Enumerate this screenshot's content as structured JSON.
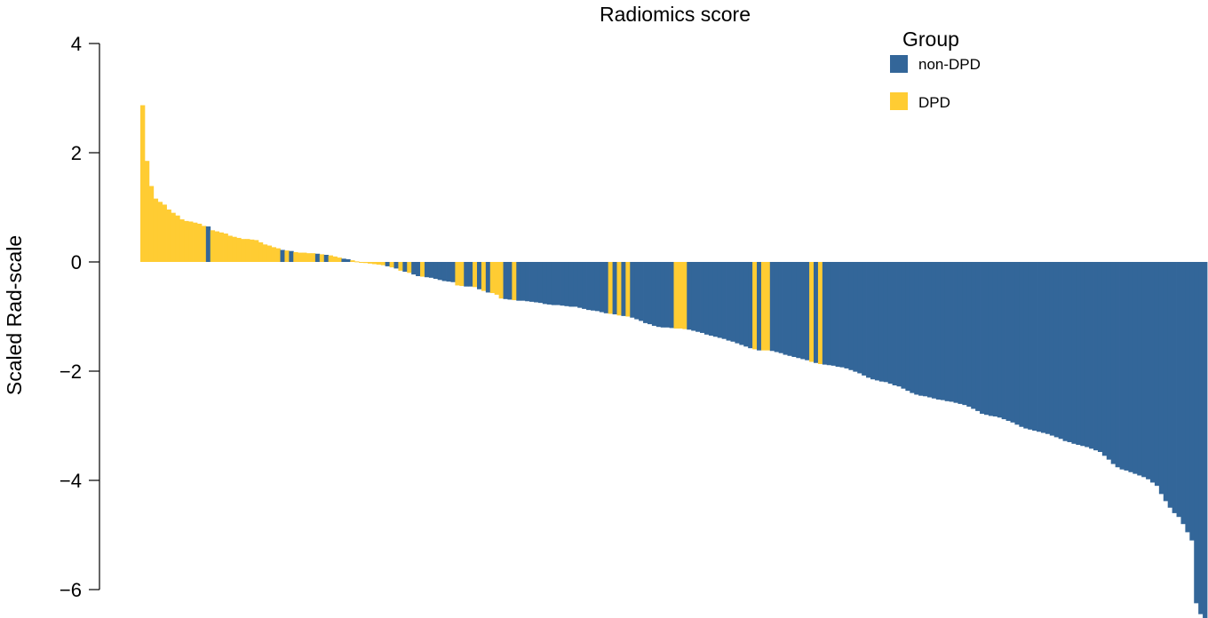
{
  "chart_data": {
    "type": "bar",
    "title": "Radiomics score",
    "xlabel": "",
    "ylabel": "Scaled Rad-scale",
    "ylim": [
      -6.4,
      4
    ],
    "yticks": [
      {
        "value": 4,
        "label": "4"
      },
      {
        "value": 2,
        "label": "2"
      },
      {
        "value": 0,
        "label": "0"
      },
      {
        "value": -2,
        "label": "−2"
      },
      {
        "value": -4,
        "label": "−4"
      },
      {
        "value": -6,
        "label": "−6"
      }
    ],
    "grid": false,
    "legend": {
      "title": "Group",
      "position": "top-right",
      "entries": [
        {
          "name": "non-DPD",
          "color": "#336699"
        },
        {
          "name": "DPD",
          "color": "#FFCC33"
        }
      ]
    },
    "group_codes": {
      "N": "non-DPD",
      "D": "DPD"
    },
    "bars_compressed": "D2.87 D1.85 D1.39 D1.16 D1.1 D1.05 D0.96 D0.9 D0.85 D0.78 D0.75 D0.74 D0.72 D0.7 D0.66 N0.65 D0.58 D0.56 D0.54 D0.52 D0.48 D0.46 D0.44 D0.42 D0.42 D0.41 D0.4 D0.36 D0.32 D0.3 D0.27 D0.25 N0.22 D0.21 N0.2 D0.18 D0.17 D0.17 D0.16 D0.16 N0.15 D0.14 N0.13 D0.12 D0.1 D0.08 N0.06 N0.05 D0.03 D0.01 D-0.01 D-0.02 D-0.03 D-0.04 D-0.05 D-0.06 N-0.08 D-0.1 N-0.12 D-0.16 N-0.18 D-0.2 N-0.23 N-0.26 D-0.27 N-0.28 N-0.29 N-0.31 N-0.33 N-0.35 N-0.36 N-0.37 D-0.43 D-0.44 N-0.45 N-0.45 D-0.46 N-0.5 D-0.53 N-0.56 D-0.57 D-0.6 D-0.67 N-0.68 N-0.69 D-0.7 N-0.71 N-0.71 N-0.72 N-0.73 N-0.74 N-0.75 N-0.77 N-0.78 N-0.79 N-0.79 N-0.8 N-0.81 N-0.82 N-0.82 N-0.84 N-0.86 N-0.88 N-0.89 N-0.9 N-0.92 N-0.94 D-0.95 N-0.96 D-0.98 N-0.99 D-1.0 N-1.02 N-1.05 N-1.08 N-1.12 N-1.14 N-1.17 N-1.19 N-1.2 N-1.2 N-1.21 D-1.22 D-1.22 D-1.23 N-1.24 N-1.26 N-1.28 N-1.3 N-1.33 N-1.35 N-1.37 N-1.39 N-1.41 N-1.44 N-1.46 N-1.49 N-1.52 N-1.55 N-1.58 D-1.6 N-1.62 D-1.62 D-1.62 N-1.63 N-1.65 N-1.67 N-1.7 N-1.72 N-1.74 N-1.76 N-1.78 N-1.8 D-1.83 N-1.85 D-1.87 N-1.88 N-1.89 N-1.9 N-1.92 N-1.93 N-1.95 N-1.98 N-2.01 N-2.04 N-2.08 N-2.12 N-2.15 N-2.17 N-2.19 N-2.2 N-2.23 N-2.26 N-2.28 N-2.32 N-2.36 N-2.4 N-2.43 N-2.45 N-2.46 N-2.48 N-2.5 N-2.52 N-2.53 N-2.55 N-2.56 N-2.58 N-2.6 N-2.62 N-2.65 N-2.69 N-2.73 N-2.78 N-2.8 N-2.82 N-2.83 N-2.85 N-2.88 N-2.91 N-2.94 N-2.98 N-3.02 N-3.05 N-3.07 N-3.09 N-3.11 N-3.13 N-3.15 N-3.18 N-3.21 N-3.24 N-3.28 N-3.3 N-3.33 N-3.35 N-3.37 N-3.39 N-3.42 N-3.45 N-3.48 N-3.55 N-3.62 N-3.7 N-3.76 N-3.8 N-3.82 N-3.85 N-3.88 N-3.91 N-3.94 N-3.98 N-4.04 N-4.1 N-4.25 N-4.38 N-4.5 N-4.6 N-4.67 N-4.8 N-4.95 N-5.1 N-6.25 N-6.45 N-6.55"
  }
}
